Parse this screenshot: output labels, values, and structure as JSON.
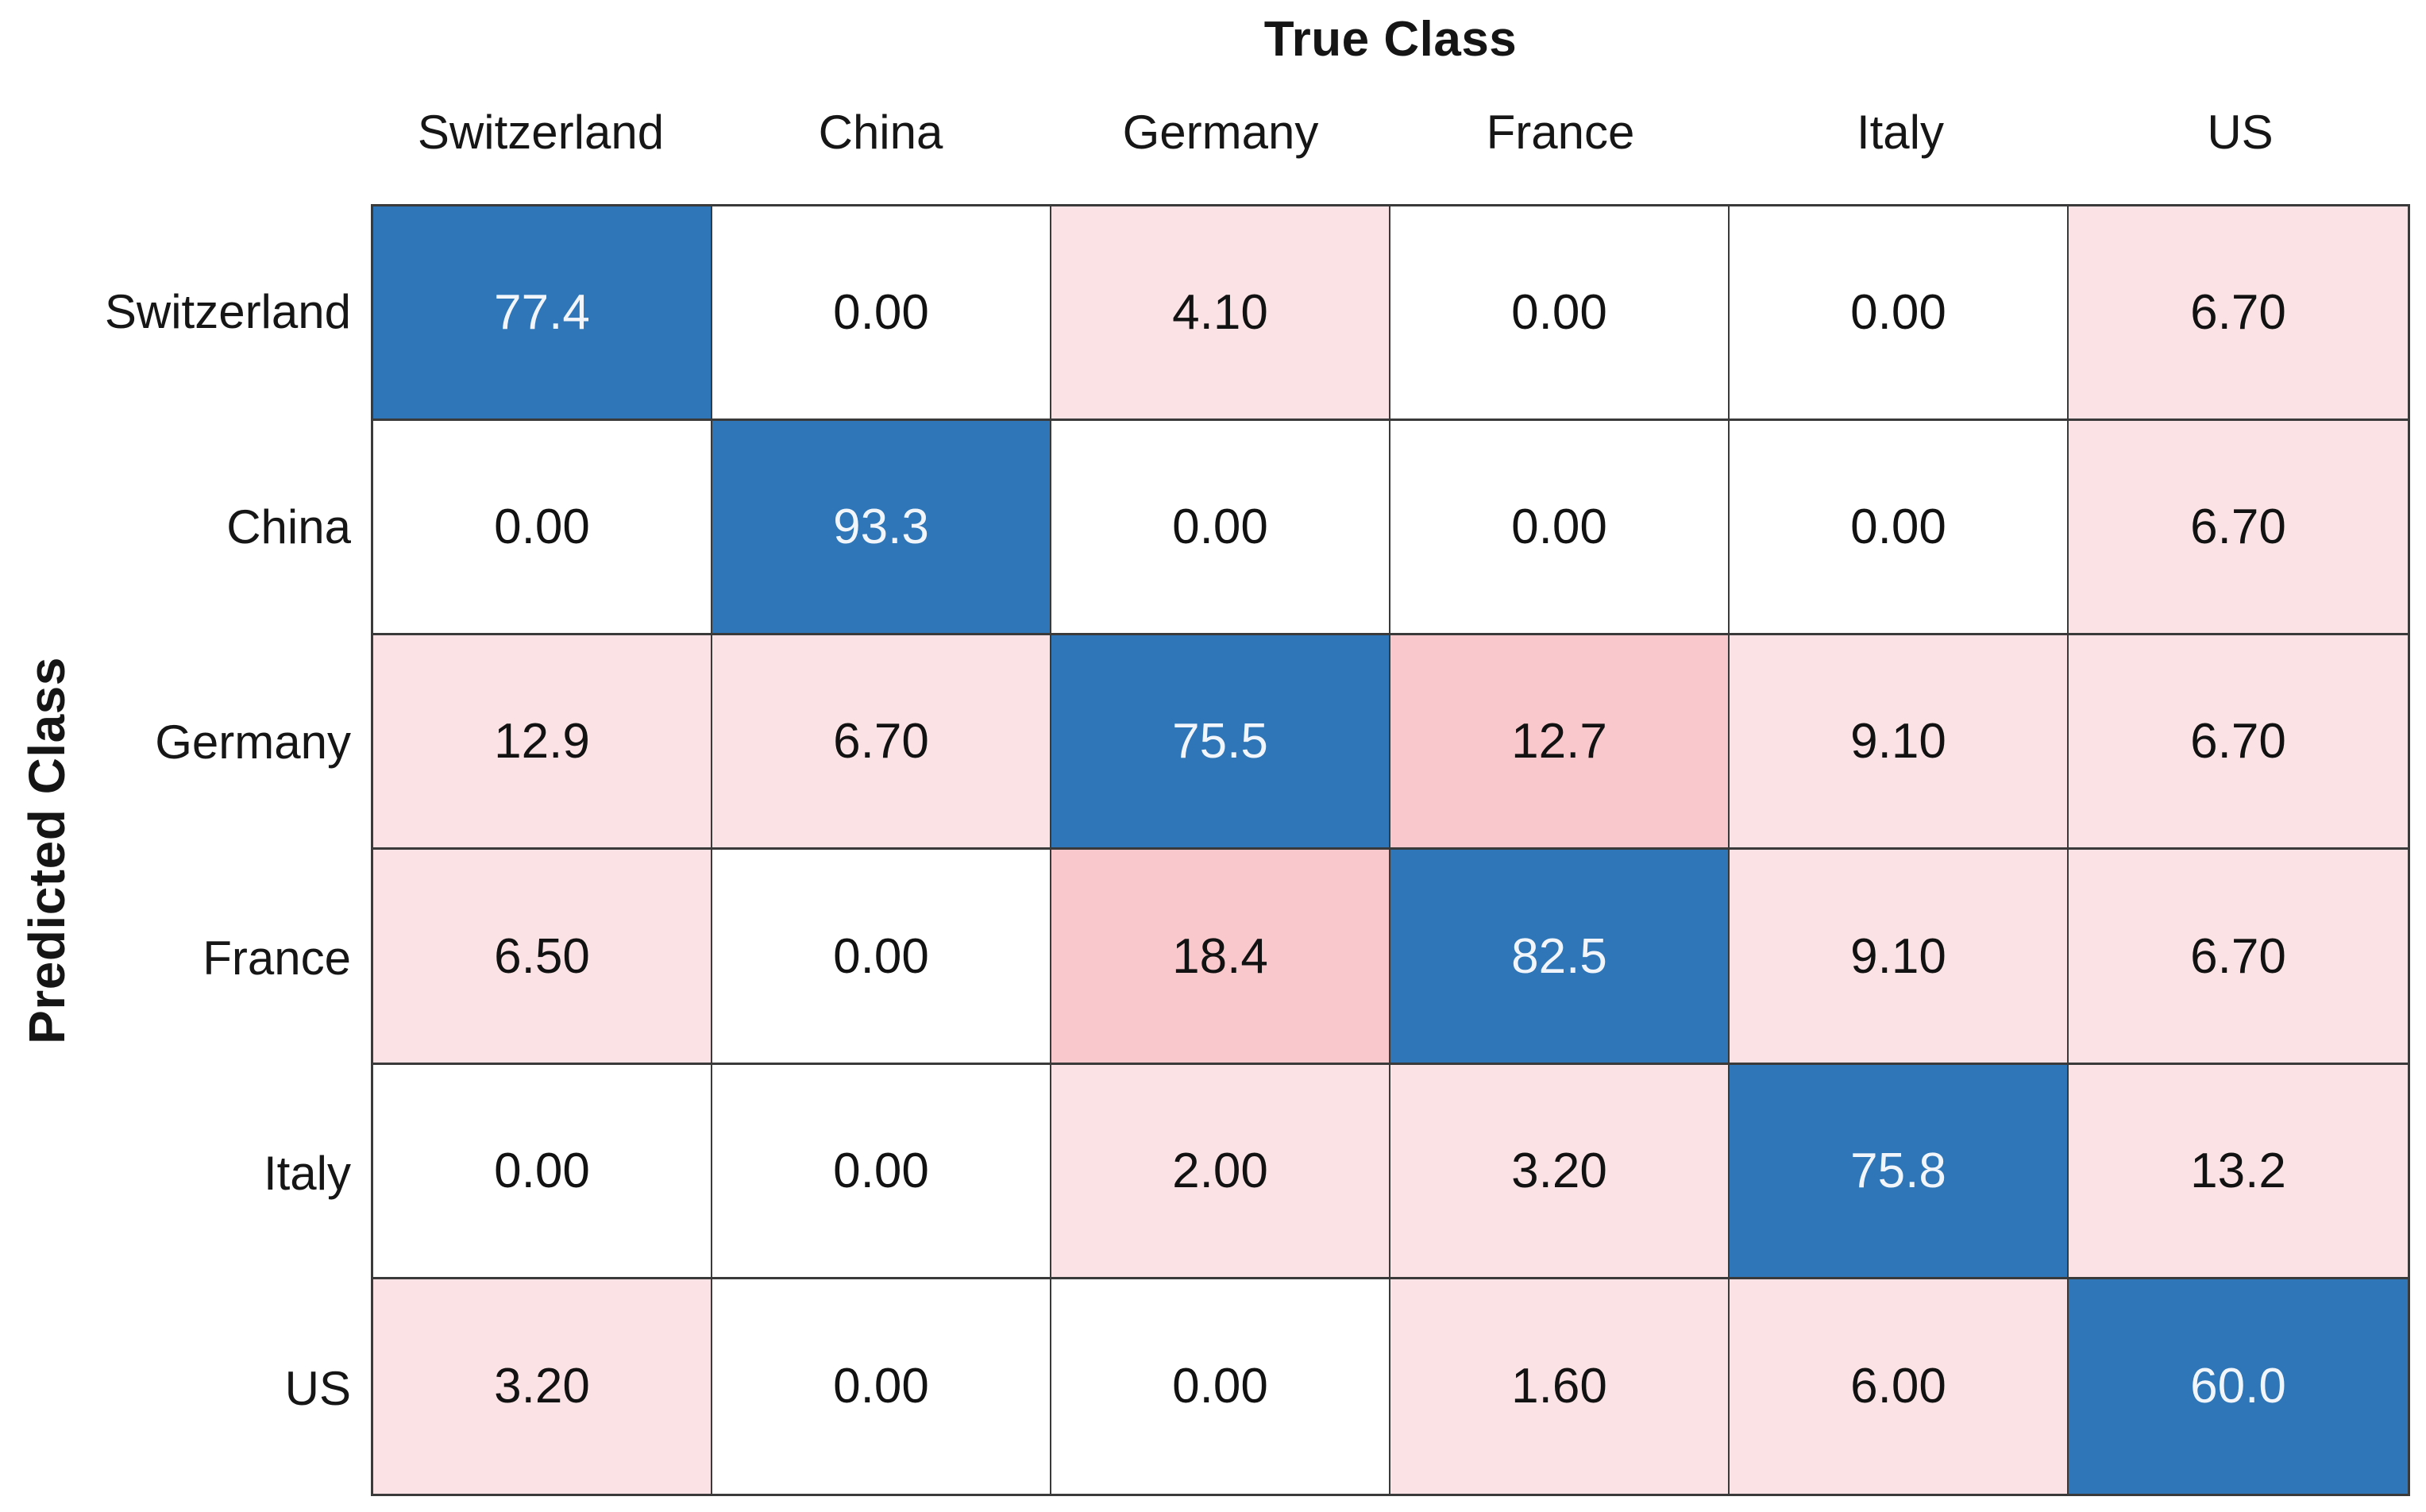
{
  "figure": {
    "x_axis_title": "True Class",
    "y_axis_title": "Predicted Class"
  },
  "colors": {
    "diagonal_blue": "#2E76B7",
    "off_diagonal_zero_white": "#FFFFFF",
    "off_diagonal_light_pink": "#FBE2E4",
    "off_diagonal_dark_pink": "#F8C8CC",
    "grid_line": "#3A3A3A",
    "text_dark": "#121212",
    "text_on_blue": "#F2F6FB"
  },
  "chart_data": {
    "type": "heatmap",
    "subtype": "confusion-matrix",
    "title": "",
    "xlabel": "True Class",
    "ylabel": "Predicted Class",
    "categories": [
      "Switzerland",
      "China",
      "Germany",
      "France",
      "Italy",
      "US"
    ],
    "rows_axis": "Predicted Class",
    "columns_axis": "True Class",
    "values": [
      [
        77.4,
        0.0,
        4.1,
        0.0,
        0.0,
        6.7
      ],
      [
        0.0,
        93.3,
        0.0,
        0.0,
        0.0,
        6.7
      ],
      [
        12.9,
        6.7,
        75.5,
        12.7,
        9.1,
        6.7
      ],
      [
        6.5,
        0.0,
        18.4,
        82.5,
        9.1,
        6.7
      ],
      [
        0.0,
        0.0,
        2.0,
        3.2,
        75.8,
        13.2
      ],
      [
        3.2,
        0.0,
        0.0,
        1.6,
        6.0,
        60.0
      ]
    ],
    "matrix_display": [
      [
        "77.4",
        "0.00",
        "4.10",
        "0.00",
        "0.00",
        "6.70"
      ],
      [
        "0.00",
        "93.3",
        "0.00",
        "0.00",
        "0.00",
        "6.70"
      ],
      [
        "12.9",
        "6.70",
        "75.5",
        "12.7",
        "9.10",
        "6.70"
      ],
      [
        "6.50",
        "0.00",
        "18.4",
        "82.5",
        "9.10",
        "6.70"
      ],
      [
        "0.00",
        "0.00",
        "2.00",
        "3.20",
        "75.8",
        "13.2"
      ],
      [
        "3.20",
        "0.00",
        "0.00",
        "1.60",
        "6.00",
        "60.0"
      ]
    ],
    "color_grid": [
      [
        "B",
        "W",
        "P",
        "W",
        "W",
        "P"
      ],
      [
        "W",
        "B",
        "W",
        "W",
        "W",
        "P"
      ],
      [
        "P",
        "P",
        "B",
        "D",
        "P",
        "P"
      ],
      [
        "P",
        "W",
        "D",
        "B",
        "P",
        "P"
      ],
      [
        "W",
        "W",
        "P",
        "P",
        "B",
        "P"
      ],
      [
        "P",
        "W",
        "W",
        "P",
        "P",
        "B"
      ]
    ],
    "cell_palette": {
      "B": "#2E76B7",
      "W": "#FFFFFF",
      "P": "#FBE2E4",
      "D": "#F8C8CC"
    },
    "legend": "none",
    "grid": "on"
  }
}
